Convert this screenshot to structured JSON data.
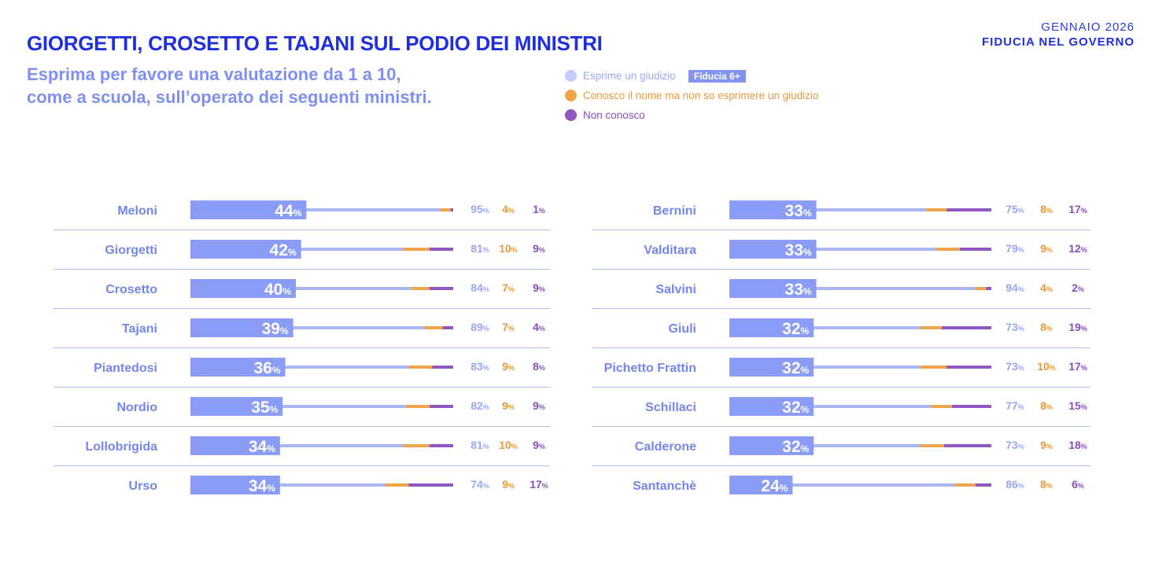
{
  "header": {
    "title": "GIORGETTI, CROSETTO E TAJANI SUL PODIO DEI MINISTRI",
    "subtitle_line1": "Esprima per favore una valutazione da 1 a 10,",
    "subtitle_line2": "come a scuola, sull’operato dei seguenti ministri.",
    "date": "GENNAIO 2026",
    "section": "FIDUCIA NEL GOVERNO"
  },
  "legend": {
    "judgement": "Esprime un giudizio",
    "badge": "Fiducia 6+",
    "no_opinion": "Conosco il nome ma non so esprimere un giudizio",
    "unknown": "Non conosco"
  },
  "colors": {
    "trust": "#8a9cf6",
    "judgement": "#aab6f8",
    "no_opinion": "#efa34b",
    "unknown": "#9056c0",
    "judgement_text": "#9aa8f3",
    "name_text": "#7486ee",
    "divider": "#b4bdf0"
  },
  "chart_data": [
    {
      "type": "bar",
      "columns": [
        "Fiducia 6+",
        "Esprime un giudizio",
        "Conosco il nome ma non so esprimere un giudizio",
        "Non conosco"
      ],
      "rows": [
        {
          "name": "Meloni",
          "trust": 44,
          "judgement": 95,
          "no_opinion": 4,
          "unknown": 1
        },
        {
          "name": "Giorgetti",
          "trust": 42,
          "judgement": 81,
          "no_opinion": 10,
          "unknown": 9
        },
        {
          "name": "Crosetto",
          "trust": 40,
          "judgement": 84,
          "no_opinion": 7,
          "unknown": 9
        },
        {
          "name": "Tajani",
          "trust": 39,
          "judgement": 89,
          "no_opinion": 7,
          "unknown": 4
        },
        {
          "name": "Piantedosi",
          "trust": 36,
          "judgement": 83,
          "no_opinion": 9,
          "unknown": 8
        },
        {
          "name": "Nordio",
          "trust": 35,
          "judgement": 82,
          "no_opinion": 9,
          "unknown": 9
        },
        {
          "name": "Lollobrigida",
          "trust": 34,
          "judgement": 81,
          "no_opinion": 10,
          "unknown": 9
        },
        {
          "name": "Urso",
          "trust": 34,
          "judgement": 74,
          "no_opinion": 9,
          "unknown": 17
        }
      ]
    },
    {
      "type": "bar",
      "columns": [
        "Fiducia 6+",
        "Esprime un giudizio",
        "Conosco il nome ma non so esprimere un giudizio",
        "Non conosco"
      ],
      "rows": [
        {
          "name": "Bernini",
          "trust": 33,
          "judgement": 75,
          "no_opinion": 8,
          "unknown": 17
        },
        {
          "name": "Valditara",
          "trust": 33,
          "judgement": 79,
          "no_opinion": 9,
          "unknown": 12
        },
        {
          "name": "Salvini",
          "trust": 33,
          "judgement": 94,
          "no_opinion": 4,
          "unknown": 2
        },
        {
          "name": "Giuli",
          "trust": 32,
          "judgement": 73,
          "no_opinion": 8,
          "unknown": 19
        },
        {
          "name": "Pichetto Frattin",
          "trust": 32,
          "judgement": 73,
          "no_opinion": 10,
          "unknown": 17
        },
        {
          "name": "Schillaci",
          "trust": 32,
          "judgement": 77,
          "no_opinion": 8,
          "unknown": 15
        },
        {
          "name": "Calderone",
          "trust": 32,
          "judgement": 73,
          "no_opinion": 9,
          "unknown": 18
        },
        {
          "name": "Santanchè",
          "trust": 24,
          "judgement": 86,
          "no_opinion": 8,
          "unknown": 6
        }
      ]
    }
  ]
}
